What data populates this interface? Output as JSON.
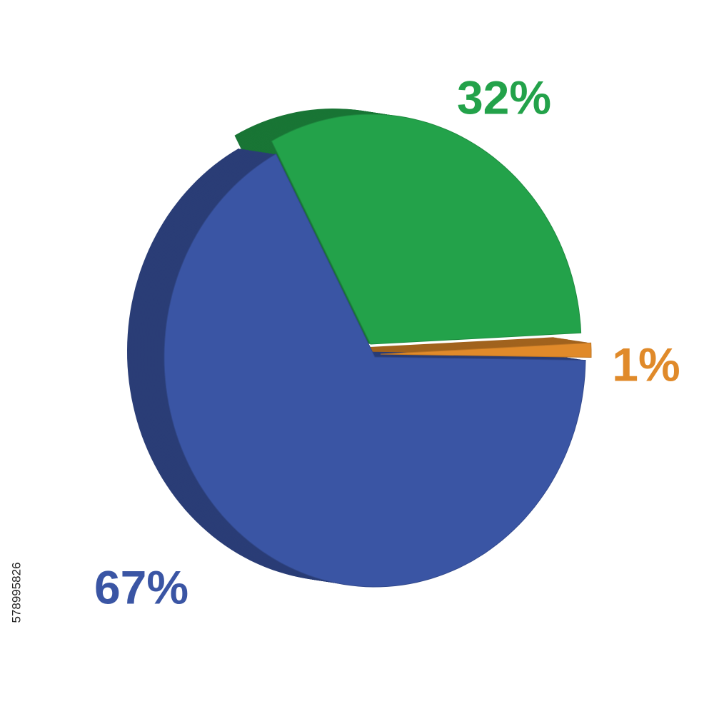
{
  "chart_data": {
    "type": "pie",
    "categories": [
      null,
      null,
      null
    ],
    "values": [
      32,
      1,
      67
    ],
    "value_labels": [
      "32%",
      "1%",
      "67%"
    ],
    "colors": [
      "#23a24a",
      "#e08a2a",
      "#3a55a4"
    ]
  },
  "stock_id": "578995826"
}
